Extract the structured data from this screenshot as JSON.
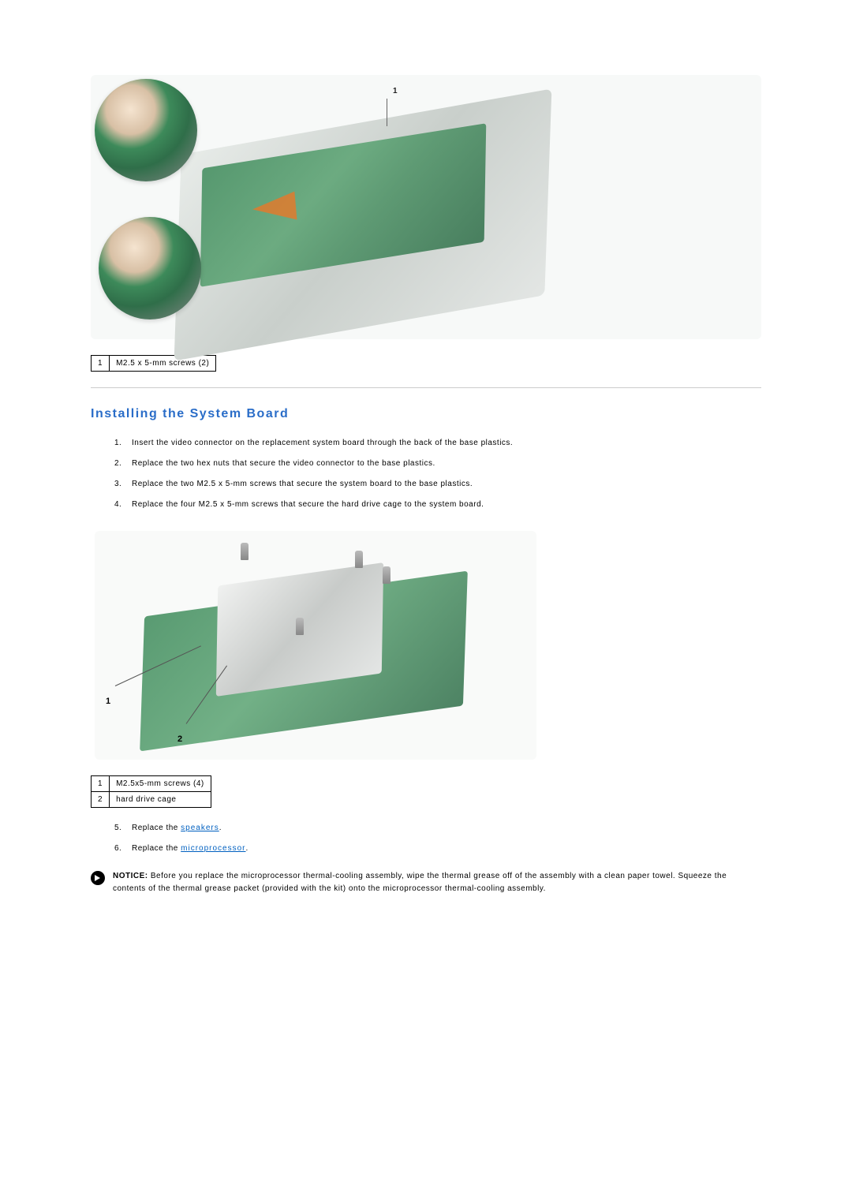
{
  "figure1": {
    "callouts": [
      {
        "num": "1",
        "label": "M2.5 x 5-mm screws (2)"
      }
    ],
    "leader_label": "1"
  },
  "section": {
    "title": "Installing the System Board",
    "title_color": "#2a6dc8"
  },
  "steps_part1": [
    {
      "n": "1.",
      "text": "Insert the video connector on the replacement system board through the back of the base plastics."
    },
    {
      "n": "2.",
      "text": "Replace the two hex nuts that secure the video connector to the base plastics."
    },
    {
      "n": "3.",
      "text": "Replace the two M2.5 x 5-mm screws that secure the system board to the base plastics."
    },
    {
      "n": "4.",
      "text": "Replace the four M2.5 x 5-mm screws that secure the hard drive cage to the system board."
    }
  ],
  "figure2": {
    "callouts": [
      {
        "num": "1",
        "label": "M2.5x5-mm screws (4)"
      },
      {
        "num": "2",
        "label": "hard drive cage"
      }
    ],
    "leader_labels": {
      "l1": "1",
      "l2": "2"
    }
  },
  "steps_part2": [
    {
      "n": "5.",
      "prefix": "Replace the ",
      "link": "speakers",
      "suffix": "."
    },
    {
      "n": "6.",
      "prefix": "Replace the ",
      "link": "microprocessor",
      "suffix": "."
    }
  ],
  "notice": {
    "label": "NOTICE:",
    "text": " Before you replace the microprocessor thermal-cooling assembly, wipe the thermal grease off of the assembly with a clean paper towel. Squeeze the contents of the thermal grease packet (provided with the kit) onto the microprocessor thermal-cooling assembly."
  },
  "colors": {
    "link": "#0060c0",
    "rule": "#cccccc",
    "text": "#000000"
  }
}
